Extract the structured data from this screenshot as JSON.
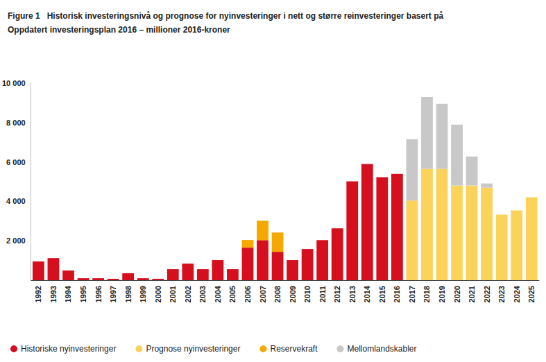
{
  "chart_data": {
    "type": "bar",
    "title": "Figure 1   Historisk investeringsnivå og prognose for nyinvesteringer i nett og større reinvesteringer basert på\nOppdatert investeringsplan 2016 – millioner 2016-kroner",
    "categories": [
      "1992",
      "1993",
      "1994",
      "1995",
      "1996",
      "1997",
      "1998",
      "1999",
      "2000",
      "2001",
      "2002",
      "2003",
      "2004",
      "2005",
      "2006",
      "2007",
      "2008",
      "2009",
      "2010",
      "2011",
      "2012",
      "2013",
      "2014",
      "2015",
      "2016",
      "2017",
      "2018",
      "2019",
      "2020",
      "2021",
      "2022",
      "2023",
      "2024",
      "2025"
    ],
    "series": [
      {
        "name": "Historiske nyinvesteringer",
        "color": "#d50f1e",
        "values": [
          950,
          1120,
          490,
          100,
          100,
          70,
          350,
          100,
          70,
          560,
          840,
          560,
          1020,
          560,
          1650,
          2030,
          1440,
          1020,
          1580,
          2030,
          2630,
          5020,
          5900,
          5230,
          5400,
          null,
          null,
          null,
          null,
          null,
          null,
          null,
          null,
          null
        ]
      },
      {
        "name": "Prognose nyinvesteringer",
        "color": "#fbd35a",
        "values": [
          null,
          null,
          null,
          null,
          null,
          null,
          null,
          null,
          null,
          null,
          null,
          null,
          null,
          null,
          null,
          null,
          null,
          null,
          null,
          null,
          null,
          null,
          null,
          null,
          null,
          4040,
          5650,
          5650,
          4810,
          4810,
          4700,
          3330,
          3540,
          4210
        ]
      },
      {
        "name": "Reservekraft",
        "color": "#f5a800",
        "values": [
          null,
          null,
          null,
          null,
          null,
          null,
          null,
          null,
          null,
          null,
          null,
          null,
          null,
          null,
          390,
          990,
          980,
          null,
          null,
          null,
          null,
          null,
          null,
          null,
          null,
          null,
          null,
          null,
          null,
          null,
          null,
          null,
          null,
          null
        ]
      },
      {
        "name": "Mellomlandskabler",
        "color": "#c8c8c8",
        "values": [
          null,
          null,
          null,
          null,
          null,
          null,
          null,
          null,
          null,
          null,
          null,
          null,
          null,
          null,
          null,
          null,
          null,
          null,
          null,
          null,
          null,
          null,
          null,
          null,
          null,
          3120,
          3650,
          3300,
          3090,
          1470,
          210,
          null,
          null,
          null
        ]
      }
    ],
    "ylim": [
      0,
      10000
    ],
    "yticks": [
      {
        "value": 2000,
        "label": "2 000"
      },
      {
        "value": 4000,
        "label": "4 000"
      },
      {
        "value": 6000,
        "label": "6 000"
      },
      {
        "value": 8000,
        "label": "8 000"
      },
      {
        "value": 10000,
        "label": "10 000"
      }
    ],
    "stacked": true,
    "grid": false,
    "legend": "bottom"
  }
}
